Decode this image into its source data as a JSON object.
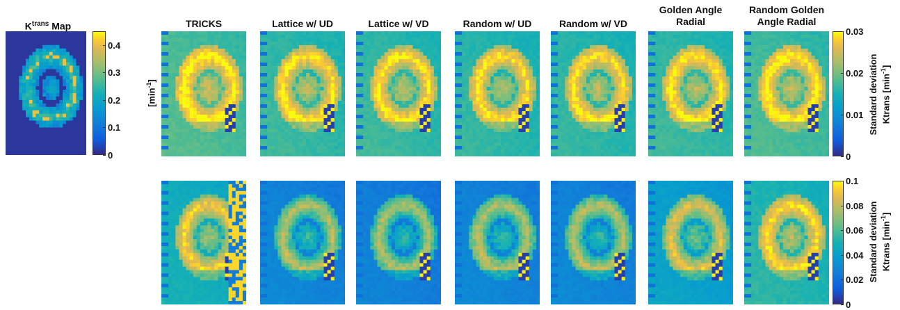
{
  "figure": {
    "left_panel": {
      "title": "K",
      "title_sup": "trans",
      "title_suffix": " Map"
    },
    "column_titles": [
      "TRICKS",
      "Lattice w/ UD",
      "Lattice w/ VD",
      "Random w/ UD",
      "Random w/ VD",
      "Golden Angle\nRadial",
      "Random Golden\nAngle Radial"
    ],
    "colormap": "parula",
    "colors": {
      "low": "#352a87",
      "mid": "#21b1a6",
      "high": "#f9fb0e"
    }
  },
  "chart_data": [
    {
      "type": "heatmap",
      "name": "Ktrans Map",
      "colorbar": {
        "ticks": [
          "0",
          "0.1",
          "0.2",
          "0.3",
          "0.4"
        ],
        "range": [
          0,
          0.45
        ],
        "label_base": "[min",
        "label_sup": "-1",
        "label_end": "]"
      }
    },
    {
      "type": "heatmap",
      "row": 1,
      "panels": 7,
      "colorbar": {
        "ticks": [
          "0",
          "0.01",
          "0.02",
          "0.03"
        ],
        "range": [
          0,
          0.03
        ],
        "label_line1": "Standard deviation",
        "label_line2_base": "Ktrans [min",
        "label_sup": "-1",
        "label_end": "]"
      },
      "relative_levels": [
        0.72,
        0.66,
        0.66,
        0.64,
        0.64,
        0.66,
        0.7
      ]
    },
    {
      "type": "heatmap",
      "row": 2,
      "panels": 7,
      "colorbar": {
        "ticks": [
          "0",
          "0.02",
          "0.04",
          "0.06",
          "0.08",
          "0.1"
        ],
        "range": [
          0,
          0.1
        ],
        "label_line1": "Standard deviation",
        "label_line2_base": "Ktrans [min",
        "label_sup": "-1",
        "label_end": "]"
      },
      "relative_levels": [
        0.55,
        0.28,
        0.25,
        0.28,
        0.28,
        0.45,
        0.62
      ]
    }
  ]
}
